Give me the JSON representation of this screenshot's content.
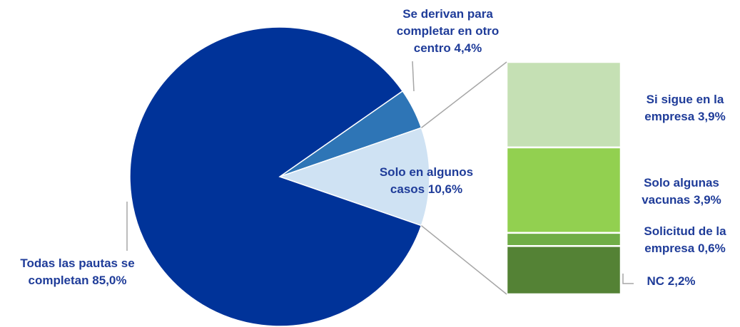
{
  "chart_data": {
    "type": "pie",
    "categories": [
      "Todas las pautas se completan",
      "Se derivan para completar en otro centro",
      "Solo en algunos casos"
    ],
    "values": [
      85.0,
      4.4,
      10.6
    ],
    "value_labels": [
      "85,0%",
      "4,4%",
      "10,6%"
    ],
    "colors": [
      "#003399",
      "#2e75b6",
      "#cfe2f3"
    ],
    "breakdown": {
      "categories": [
        "Si sigue en la empresa",
        "Solo algunas vacunas",
        "Solicitud de la empresa",
        "NC"
      ],
      "values": [
        3.9,
        3.9,
        0.6,
        2.2
      ],
      "value_labels": [
        "3,9%",
        "3,9%",
        "0,6%",
        "2,2%"
      ],
      "colors": [
        "#c5e0b4",
        "#92d050",
        "#70ad47",
        "#548235"
      ]
    }
  }
}
